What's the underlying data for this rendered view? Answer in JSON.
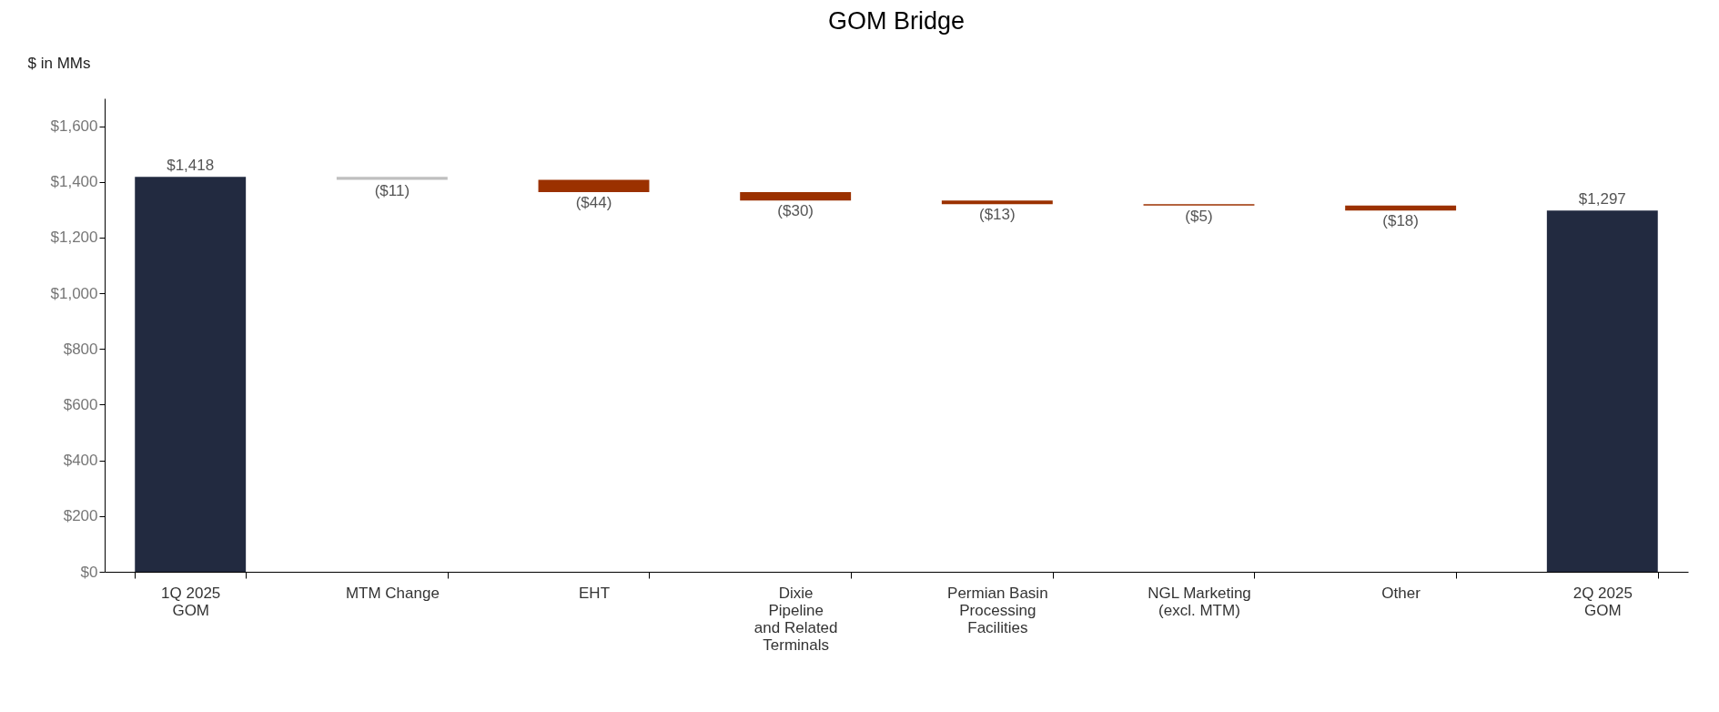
{
  "chart_data": {
    "type": "bar",
    "title": "GOM Bridge",
    "ylabel": "$ in MMs",
    "categories": [
      "1Q 2025\nGOM",
      "MTM Change",
      "EHT",
      "Dixie\nPipeline\nand Related\nTerminals",
      "Permian Basin\nProcessing\nFacilities",
      "NGL Marketing\n(excl. MTM)",
      "Other",
      "2Q 2025\nGOM"
    ],
    "values": [
      1418,
      -11,
      -44,
      -30,
      -13,
      -5,
      -18,
      1297
    ],
    "base": [
      0,
      1418,
      1407,
      1363,
      1333,
      1320,
      1315,
      0
    ],
    "colors": [
      "#222a40",
      "#bfbfbf",
      "#9b3100",
      "#9b3100",
      "#9b3100",
      "#9b3100",
      "#9b3100",
      "#222a40"
    ],
    "value_labels": [
      "$1,418",
      "($11)",
      "($44)",
      "($30)",
      "($13)",
      "($5)",
      "($18)",
      "$1,297"
    ],
    "ylim": [
      0,
      1700
    ],
    "yticks": [
      {
        "value": 0,
        "label": "$0"
      },
      {
        "value": 200,
        "label": "$200"
      },
      {
        "value": 400,
        "label": "$400"
      },
      {
        "value": 600,
        "label": "$600"
      },
      {
        "value": 800,
        "label": "$800"
      },
      {
        "value": 1000,
        "label": "$1,000"
      },
      {
        "value": 1200,
        "label": "$1,200"
      },
      {
        "value": 1400,
        "label": "$1,400"
      },
      {
        "value": 1600,
        "label": "$1,600"
      }
    ],
    "grid": false
  }
}
